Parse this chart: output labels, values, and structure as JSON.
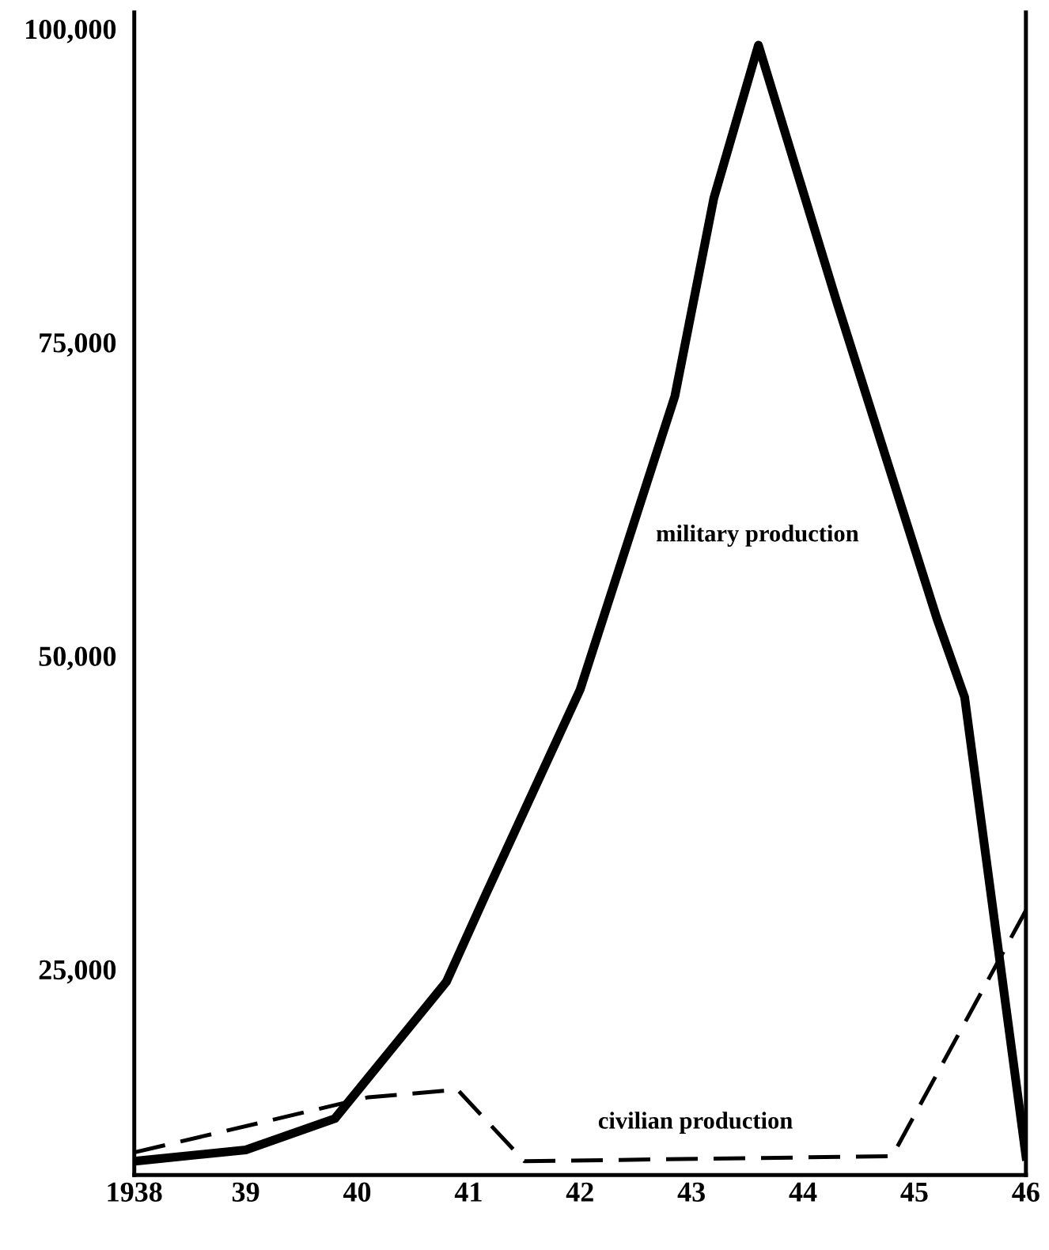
{
  "chart_data": {
    "type": "line",
    "x": [
      1938,
      1939,
      1939.8,
      1940.8,
      1941.15,
      1942,
      1942.85,
      1943.2,
      1943.6,
      1944.3,
      1945.2,
      1945.45,
      1946
    ],
    "series": [
      {
        "name": "military production",
        "color": "#000000",
        "line_style": "solid",
        "values": [
          9700,
          10600,
          13100,
          24000,
          30900,
          47300,
          70700,
          86500,
          98700,
          78300,
          53000,
          46700,
          10100
        ]
      },
      {
        "name": "civilian production",
        "color": "#000000",
        "line_style": "dashed",
        "x": [
          1938,
          1940.1,
          1940.9,
          1941.5,
          1944.8,
          1946
        ],
        "values": [
          10400,
          14800,
          15400,
          9700,
          10100,
          29700
        ]
      }
    ],
    "xlim": [
      1938,
      1946
    ],
    "ylim": [
      8600,
      101300
    ],
    "xticks": [
      {
        "value": 1938,
        "label": "1938"
      },
      {
        "value": 1939,
        "label": "39"
      },
      {
        "value": 1940,
        "label": "40"
      },
      {
        "value": 1941,
        "label": "41"
      },
      {
        "value": 1942,
        "label": "42"
      },
      {
        "value": 1943,
        "label": "43"
      },
      {
        "value": 1944,
        "label": "44"
      },
      {
        "value": 1945,
        "label": "45"
      },
      {
        "value": 1946,
        "label": "46"
      }
    ],
    "yticks": [
      {
        "value": 25000,
        "label": "25,000"
      },
      {
        "value": 50000,
        "label": "50,000"
      },
      {
        "value": 75000,
        "label": "75,000"
      },
      {
        "value": 100000,
        "label": "100,000"
      }
    ],
    "grid": false,
    "legend": false,
    "marker": "none"
  }
}
